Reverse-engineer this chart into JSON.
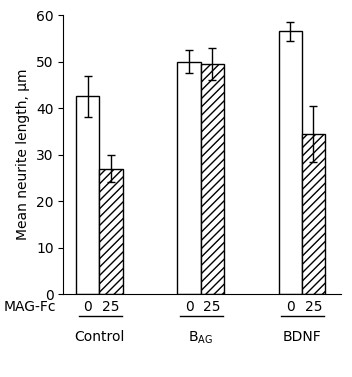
{
  "groups": [
    "Control",
    "B_AG",
    "BDNF"
  ],
  "bar_values": [
    [
      42.5,
      27.0
    ],
    [
      50.0,
      49.5
    ],
    [
      56.5,
      34.5
    ]
  ],
  "bar_errors": [
    [
      4.5,
      3.0
    ],
    [
      2.5,
      3.5
    ],
    [
      2.0,
      6.0
    ]
  ],
  "ylabel": "Mean neurite length, μm",
  "ylim": [
    0,
    60
  ],
  "yticks": [
    0,
    10,
    20,
    30,
    40,
    50,
    60
  ],
  "bar_width": 0.32,
  "group_centers": [
    0.5,
    1.9,
    3.3
  ],
  "solid_color": "#ffffff",
  "solid_edgecolor": "#000000",
  "hatch_pattern": "////",
  "background_color": "#ffffff",
  "font_size_ticks": 10,
  "font_size_labels": 10,
  "font_size_ylabel": 10
}
